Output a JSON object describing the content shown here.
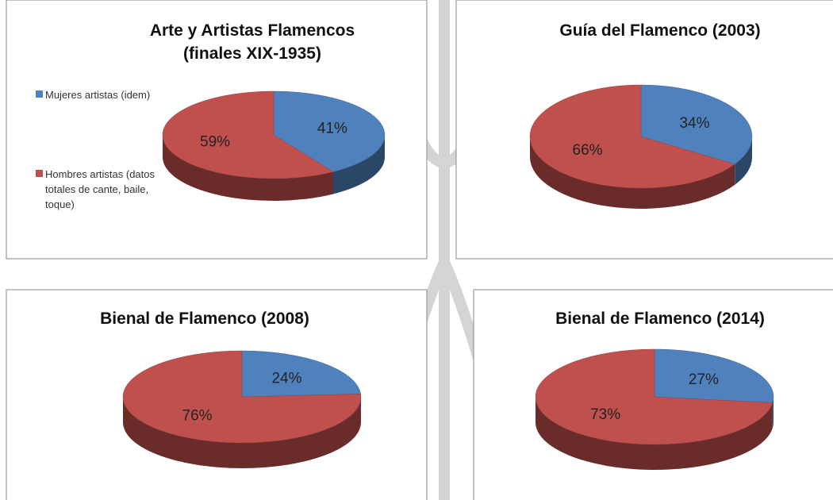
{
  "chart_data": [
    {
      "type": "pie",
      "title": [
        "Arte y Artistas Flamencos",
        "(finales XIX-1935)"
      ],
      "categories": [
        "Mujeres artistas (idem)",
        "Hombres artistas (datos totales de cante, baile, toque)"
      ],
      "values": [
        41,
        59
      ],
      "value_labels": [
        "41%",
        "59%"
      ],
      "colors": [
        "#4f81bd",
        "#c0504d"
      ],
      "legend": "left"
    },
    {
      "type": "pie",
      "title": [
        "Guía del Flamenco (2003)"
      ],
      "values": [
        34,
        66
      ],
      "value_labels": [
        "34%",
        "66%"
      ],
      "colors": [
        "#4f81bd",
        "#c0504d"
      ]
    },
    {
      "type": "pie",
      "title": [
        "Bienal de Flamenco (2008)"
      ],
      "values": [
        24,
        76
      ],
      "value_labels": [
        "24%",
        "76%"
      ],
      "colors": [
        "#4f81bd",
        "#c0504d"
      ]
    },
    {
      "type": "pie",
      "title": [
        "Bienal de Flamenco (2014)"
      ],
      "values": [
        27,
        73
      ],
      "value_labels": [
        "27%",
        "73%"
      ],
      "colors": [
        "#4f81bd",
        "#c0504d"
      ]
    }
  ]
}
